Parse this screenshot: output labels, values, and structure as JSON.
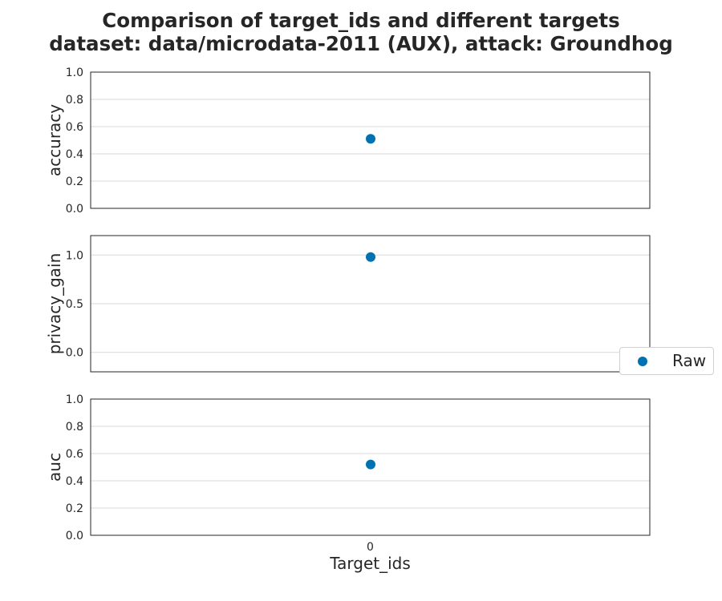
{
  "title_line1": "Comparison of target_ids and different targets",
  "title_line2": "dataset: data/microdata-2011 (AUX), attack: Groundhog",
  "colors": {
    "series": "#0072b2",
    "grid": "#d9d9d9",
    "axis": "#262626"
  },
  "chart_data": [
    {
      "type": "scatter",
      "ylabel": "accuracy",
      "ylim": [
        0,
        1.0
      ],
      "yticks": [
        0.0,
        0.2,
        0.4,
        0.6,
        0.8,
        1.0
      ],
      "ytick_labels": [
        "0.0",
        "0.2",
        "0.4",
        "0.6",
        "0.8",
        "1.0"
      ],
      "grid": true,
      "series": [
        {
          "name": "Raw",
          "x": [
            "0"
          ],
          "y": [
            0.51
          ]
        }
      ]
    },
    {
      "type": "scatter",
      "ylabel": "privacy_gain",
      "ylim": [
        -0.2,
        1.2
      ],
      "yticks": [
        0.0,
        0.5,
        1.0
      ],
      "ytick_labels": [
        "0.0",
        "0.5",
        "1.0"
      ],
      "grid": true,
      "series": [
        {
          "name": "Raw",
          "x": [
            "0"
          ],
          "y": [
            0.98
          ]
        }
      ]
    },
    {
      "type": "scatter",
      "ylabel": "auc",
      "xlabel": "Target_ids",
      "categories": [
        "0"
      ],
      "ylim": [
        0,
        1.0
      ],
      "yticks": [
        0.0,
        0.2,
        0.4,
        0.6,
        0.8,
        1.0
      ],
      "ytick_labels": [
        "0.0",
        "0.2",
        "0.4",
        "0.6",
        "0.8",
        "1.0"
      ],
      "grid": true,
      "series": [
        {
          "name": "Raw",
          "x": [
            "0"
          ],
          "y": [
            0.52
          ]
        }
      ]
    }
  ],
  "legend": {
    "placement": "right",
    "entries": [
      "Raw"
    ]
  }
}
